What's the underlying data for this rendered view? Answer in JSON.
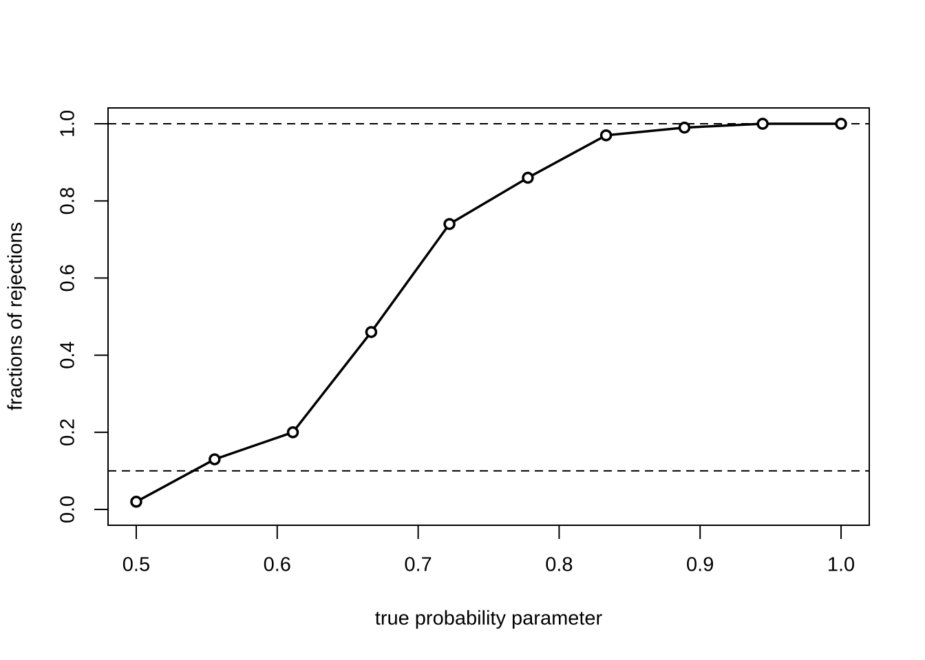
{
  "chart_data": {
    "type": "line",
    "marker": "open-circle",
    "color": "#000000",
    "xlabel": "true probability parameter",
    "ylabel": "fractions of rejections",
    "x": [
      0.5,
      0.5556,
      0.6111,
      0.6667,
      0.7222,
      0.7778,
      0.8333,
      0.8889,
      0.9444,
      1.0
    ],
    "values": [
      0.02,
      0.13,
      0.2,
      0.46,
      0.74,
      0.86,
      0.97,
      0.99,
      1.0,
      1.0
    ],
    "xlim": [
      0.48,
      1.02
    ],
    "ylim": [
      -0.041,
      1.041
    ],
    "xticks": [
      0.5,
      0.6,
      0.7,
      0.8,
      0.9,
      {
        "value": 1,
        "label": "1.0"
      }
    ],
    "yticks": [
      {
        "value": 0,
        "label": "0.0"
      },
      0.2,
      0.4,
      0.6,
      0.8,
      {
        "value": 1,
        "label": "1.0"
      }
    ],
    "hlines": [
      0.1,
      1.0
    ]
  }
}
